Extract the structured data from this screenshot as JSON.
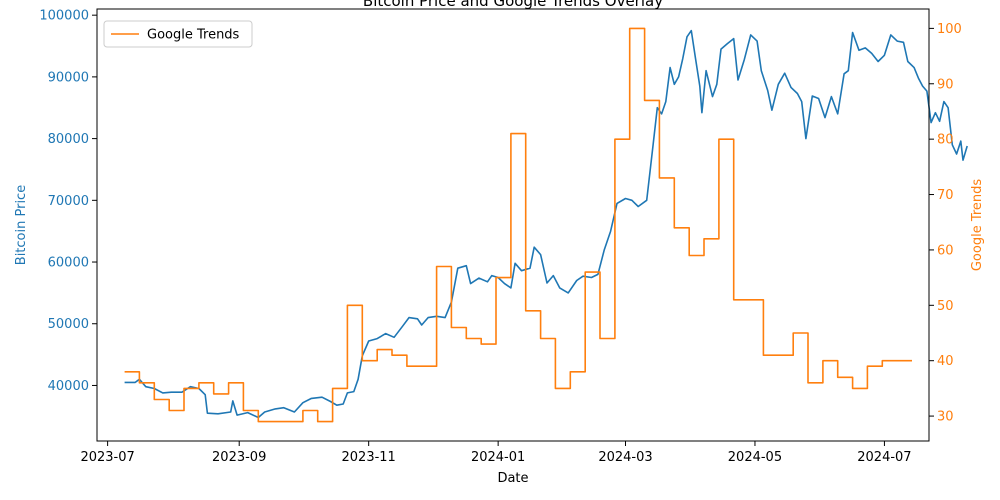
{
  "chart_data": {
    "type": "line",
    "title": "Bitcoin Price and Google Trends Overlay",
    "xlabel": "Date",
    "x_range": [
      "2023-06-26",
      "2024-07-22"
    ],
    "x_ticks": [
      "2023-07",
      "2023-09",
      "2023-11",
      "2024-01",
      "2024-03",
      "2024-05",
      "2024-07"
    ],
    "left_axis": {
      "label": "Bitcoin Price",
      "color": "#1f77b4",
      "ylim": [
        31000,
        101000
      ],
      "ticks": [
        40000,
        50000,
        60000,
        70000,
        80000,
        90000,
        100000
      ]
    },
    "right_axis": {
      "label": "Google Trends",
      "color": "#ff7f0e",
      "ylim": [
        25.5,
        103.5
      ],
      "ticks": [
        30,
        40,
        50,
        60,
        70,
        80,
        90,
        100
      ]
    },
    "legend": {
      "location": "top-left",
      "entries": [
        "Google Trends"
      ]
    },
    "series": [
      {
        "name": "Bitcoin Price",
        "axis": "left",
        "color": "#1f77b4",
        "points": [
          [
            "2023-07-09",
            40500
          ],
          [
            "2023-07-14",
            40500
          ],
          [
            "2023-07-16",
            41000
          ],
          [
            "2023-07-19",
            39800
          ],
          [
            "2023-07-23",
            39500
          ],
          [
            "2023-07-27",
            38800
          ],
          [
            "2023-07-31",
            38900
          ],
          [
            "2023-08-05",
            38900
          ],
          [
            "2023-08-09",
            39800
          ],
          [
            "2023-08-13",
            39500
          ],
          [
            "2023-08-16",
            38500
          ],
          [
            "2023-08-17",
            35500
          ],
          [
            "2023-08-22",
            35400
          ],
          [
            "2023-08-28",
            35700
          ],
          [
            "2023-08-29",
            37500
          ],
          [
            "2023-08-31",
            35200
          ],
          [
            "2023-09-05",
            35600
          ],
          [
            "2023-09-10",
            34800
          ],
          [
            "2023-09-13",
            35700
          ],
          [
            "2023-09-18",
            36200
          ],
          [
            "2023-09-22",
            36400
          ],
          [
            "2023-09-27",
            35700
          ],
          [
            "2023-10-01",
            37200
          ],
          [
            "2023-10-05",
            37900
          ],
          [
            "2023-10-10",
            38100
          ],
          [
            "2023-10-14",
            37400
          ],
          [
            "2023-10-17",
            36800
          ],
          [
            "2023-10-20",
            37000
          ],
          [
            "2023-10-22",
            38800
          ],
          [
            "2023-10-25",
            39000
          ],
          [
            "2023-10-27",
            41000
          ],
          [
            "2023-10-29",
            44800
          ],
          [
            "2023-11-01",
            47200
          ],
          [
            "2023-11-05",
            47600
          ],
          [
            "2023-11-09",
            48400
          ],
          [
            "2023-11-13",
            47800
          ],
          [
            "2023-11-17",
            49600
          ],
          [
            "2023-11-20",
            51000
          ],
          [
            "2023-11-24",
            50800
          ],
          [
            "2023-11-26",
            49800
          ],
          [
            "2023-11-29",
            51000
          ],
          [
            "2023-12-03",
            51200
          ],
          [
            "2023-12-07",
            51000
          ],
          [
            "2023-12-10",
            53500
          ],
          [
            "2023-12-13",
            59000
          ],
          [
            "2023-12-17",
            59400
          ],
          [
            "2023-12-19",
            56500
          ],
          [
            "2023-12-23",
            57400
          ],
          [
            "2023-12-27",
            56800
          ],
          [
            "2023-12-29",
            57800
          ],
          [
            "2024-01-01",
            57500
          ],
          [
            "2024-01-04",
            56500
          ],
          [
            "2024-01-07",
            55800
          ],
          [
            "2024-01-09",
            59800
          ],
          [
            "2024-01-12",
            58600
          ],
          [
            "2024-01-16",
            59000
          ],
          [
            "2024-01-18",
            62400
          ],
          [
            "2024-01-21",
            61200
          ],
          [
            "2024-01-24",
            56600
          ],
          [
            "2024-01-27",
            57800
          ],
          [
            "2024-01-30",
            55800
          ],
          [
            "2024-02-03",
            55000
          ],
          [
            "2024-02-07",
            57000
          ],
          [
            "2024-02-10",
            57700
          ],
          [
            "2024-02-14",
            57500
          ],
          [
            "2024-02-17",
            58000
          ],
          [
            "2024-02-20",
            62000
          ],
          [
            "2024-02-23",
            65000
          ],
          [
            "2024-02-26",
            69500
          ],
          [
            "2024-03-01",
            70300
          ],
          [
            "2024-03-04",
            70000
          ],
          [
            "2024-03-07",
            69000
          ],
          [
            "2024-03-11",
            70000
          ],
          [
            "2024-03-14",
            79000
          ],
          [
            "2024-03-16",
            85000
          ],
          [
            "2024-03-18",
            84000
          ],
          [
            "2024-03-20",
            86000
          ],
          [
            "2024-03-22",
            91500
          ],
          [
            "2024-03-24",
            88800
          ],
          [
            "2024-03-26",
            90000
          ],
          [
            "2024-03-28",
            93000
          ],
          [
            "2024-03-30",
            96500
          ],
          [
            "2024-04-01",
            97500
          ],
          [
            "2024-04-03",
            93000
          ],
          [
            "2024-04-05",
            88500
          ],
          [
            "2024-04-06",
            84200
          ],
          [
            "2024-04-08",
            91000
          ],
          [
            "2024-04-11",
            86800
          ],
          [
            "2024-04-13",
            88800
          ],
          [
            "2024-04-15",
            94500
          ],
          [
            "2024-04-18",
            95400
          ],
          [
            "2024-04-21",
            96200
          ],
          [
            "2024-04-23",
            89500
          ],
          [
            "2024-04-26",
            92800
          ],
          [
            "2024-04-29",
            96800
          ],
          [
            "2024-05-02",
            95800
          ],
          [
            "2024-05-04",
            91000
          ],
          [
            "2024-05-07",
            87800
          ],
          [
            "2024-05-09",
            84600
          ],
          [
            "2024-05-12",
            88800
          ],
          [
            "2024-05-15",
            90600
          ],
          [
            "2024-05-18",
            88300
          ],
          [
            "2024-05-21",
            87300
          ],
          [
            "2024-05-23",
            86000
          ],
          [
            "2024-05-25",
            80000
          ],
          [
            "2024-05-28",
            86900
          ],
          [
            "2024-05-31",
            86500
          ],
          [
            "2024-06-03",
            83400
          ],
          [
            "2024-06-06",
            86800
          ],
          [
            "2024-06-09",
            84000
          ],
          [
            "2024-06-12",
            90500
          ],
          [
            "2024-06-14",
            91000
          ],
          [
            "2024-06-16",
            97200
          ],
          [
            "2024-06-19",
            94300
          ],
          [
            "2024-06-22",
            94700
          ],
          [
            "2024-06-25",
            93800
          ],
          [
            "2024-06-28",
            92500
          ],
          [
            "2024-07-01",
            93500
          ],
          [
            "2024-07-04",
            96800
          ],
          [
            "2024-07-07",
            95800
          ],
          [
            "2024-07-10",
            95600
          ],
          [
            "2024-07-12",
            92500
          ],
          [
            "2024-07-15",
            91500
          ],
          [
            "2024-07-17",
            89800
          ],
          [
            "2024-07-19",
            88500
          ],
          [
            "2024-07-21",
            87700
          ],
          [
            "2024-07-23",
            82600
          ],
          [
            "2024-07-25",
            84200
          ],
          [
            "2024-07-27",
            82800
          ],
          [
            "2024-07-29",
            86000
          ],
          [
            "2024-07-31",
            85000
          ],
          [
            "2024-08-02",
            79000
          ],
          [
            "2024-08-04",
            77500
          ],
          [
            "2024-08-06",
            79600
          ],
          [
            "2024-08-07",
            76500
          ],
          [
            "2024-08-09",
            78800
          ]
        ]
      },
      {
        "name": "Google Trends",
        "axis": "right",
        "color": "#ff7f0e",
        "points": [
          [
            "2023-07-09",
            38
          ],
          [
            "2023-07-16",
            38
          ],
          [
            "2023-07-16",
            36
          ],
          [
            "2023-07-23",
            36
          ],
          [
            "2023-07-23",
            33
          ],
          [
            "2023-07-30",
            33
          ],
          [
            "2023-07-30",
            31
          ],
          [
            "2023-08-06",
            31
          ],
          [
            "2023-08-06",
            35
          ],
          [
            "2023-08-13",
            35
          ],
          [
            "2023-08-13",
            36
          ],
          [
            "2023-08-20",
            36
          ],
          [
            "2023-08-20",
            34
          ],
          [
            "2023-08-27",
            34
          ],
          [
            "2023-08-27",
            36
          ],
          [
            "2023-09-03",
            36
          ],
          [
            "2023-09-03",
            31
          ],
          [
            "2023-09-10",
            31
          ],
          [
            "2023-09-10",
            29
          ],
          [
            "2023-10-01",
            29
          ],
          [
            "2023-10-01",
            31
          ],
          [
            "2023-10-08",
            31
          ],
          [
            "2023-10-08",
            29
          ],
          [
            "2023-10-15",
            29
          ],
          [
            "2023-10-15",
            35
          ],
          [
            "2023-10-22",
            35
          ],
          [
            "2023-10-22",
            50
          ],
          [
            "2023-10-29",
            50
          ],
          [
            "2023-10-29",
            40
          ],
          [
            "2023-11-05",
            40
          ],
          [
            "2023-11-05",
            42
          ],
          [
            "2023-11-12",
            42
          ],
          [
            "2023-11-12",
            41
          ],
          [
            "2023-11-19",
            41
          ],
          [
            "2023-11-19",
            39
          ],
          [
            "2023-12-03",
            39
          ],
          [
            "2023-12-03",
            57
          ],
          [
            "2023-12-10",
            57
          ],
          [
            "2023-12-10",
            46
          ],
          [
            "2023-12-17",
            46
          ],
          [
            "2023-12-17",
            44
          ],
          [
            "2023-12-24",
            44
          ],
          [
            "2023-12-24",
            43
          ],
          [
            "2023-12-31",
            43
          ],
          [
            "2023-12-31",
            55
          ],
          [
            "2024-01-07",
            55
          ],
          [
            "2024-01-07",
            81
          ],
          [
            "2024-01-14",
            81
          ],
          [
            "2024-01-14",
            49
          ],
          [
            "2024-01-21",
            49
          ],
          [
            "2024-01-21",
            44
          ],
          [
            "2024-01-28",
            44
          ],
          [
            "2024-01-28",
            35
          ],
          [
            "2024-02-04",
            35
          ],
          [
            "2024-02-04",
            38
          ],
          [
            "2024-02-11",
            38
          ],
          [
            "2024-02-11",
            56
          ],
          [
            "2024-02-18",
            56
          ],
          [
            "2024-02-18",
            44
          ],
          [
            "2024-02-25",
            44
          ],
          [
            "2024-02-25",
            80
          ],
          [
            "2024-03-03",
            80
          ],
          [
            "2024-03-03",
            100
          ],
          [
            "2024-03-10",
            100
          ],
          [
            "2024-03-10",
            87
          ],
          [
            "2024-03-17",
            87
          ],
          [
            "2024-03-17",
            73
          ],
          [
            "2024-03-24",
            73
          ],
          [
            "2024-03-24",
            64
          ],
          [
            "2024-03-31",
            64
          ],
          [
            "2024-03-31",
            59
          ],
          [
            "2024-04-07",
            59
          ],
          [
            "2024-04-07",
            62
          ],
          [
            "2024-04-14",
            62
          ],
          [
            "2024-04-14",
            80
          ],
          [
            "2024-04-21",
            80
          ],
          [
            "2024-04-21",
            51
          ],
          [
            "2024-05-05",
            51
          ],
          [
            "2024-05-05",
            41
          ],
          [
            "2024-05-19",
            41
          ],
          [
            "2024-05-19",
            45
          ],
          [
            "2024-05-26",
            45
          ],
          [
            "2024-05-26",
            36
          ],
          [
            "2024-06-02",
            36
          ],
          [
            "2024-06-02",
            40
          ],
          [
            "2024-06-09",
            40
          ],
          [
            "2024-06-09",
            37
          ],
          [
            "2024-06-16",
            37
          ],
          [
            "2024-06-16",
            35
          ],
          [
            "2024-06-23",
            35
          ],
          [
            "2024-06-23",
            39
          ],
          [
            "2024-06-30",
            39
          ],
          [
            "2024-06-30",
            40
          ],
          [
            "2024-07-14",
            40
          ]
        ]
      }
    ]
  }
}
